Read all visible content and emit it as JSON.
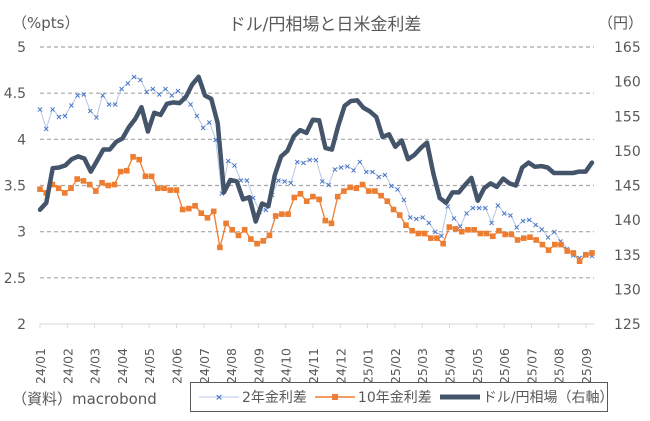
{
  "chart_data": {
    "type": "line",
    "title": "ドル/円相場と日米金利差",
    "ylabel_left": "（%pts）",
    "ylabel_right": "（円）",
    "source": "（資料）macrobond",
    "ylim_left": [
      2,
      5
    ],
    "ylim_right": [
      125,
      165
    ],
    "yticks_left": [
      "5",
      "4.5",
      "4",
      "3.5",
      "3",
      "2.5",
      "2"
    ],
    "yticks_right": [
      "165",
      "160",
      "155",
      "150",
      "145",
      "140",
      "135",
      "130",
      "125"
    ],
    "grid": true,
    "legend_position": "bottom",
    "x_tick_labels": [
      "24/01",
      "24/02",
      "24/03",
      "24/04",
      "24/05",
      "24/06",
      "24/07",
      "24/08",
      "24/09",
      "24/10",
      "24/11",
      "24/12",
      "25/01",
      "25/02",
      "25/03",
      "25/04",
      "25/05",
      "25/06",
      "25/07",
      "25/08",
      "25/09"
    ],
    "series": [
      {
        "name": "2年金利差",
        "axis": "left",
        "color": "#4472C4",
        "values": [
          4.33,
          4.12,
          4.33,
          4.25,
          4.26,
          4.37,
          4.48,
          4.49,
          4.31,
          4.24,
          4.48,
          4.38,
          4.38,
          4.55,
          4.61,
          4.68,
          4.65,
          4.52,
          4.55,
          4.49,
          4.55,
          4.48,
          4.53,
          4.45,
          4.38,
          4.26,
          4.13,
          4.19,
          4.0,
          3.42,
          3.77,
          3.72,
          3.56,
          3.56,
          3.37,
          3.22,
          3.24,
          3.4,
          3.56,
          3.55,
          3.53,
          3.76,
          3.75,
          3.78,
          3.78,
          3.55,
          3.51,
          3.68,
          3.7,
          3.71,
          3.67,
          3.76,
          3.65,
          3.65,
          3.6,
          3.62,
          3.5,
          3.46,
          3.35,
          3.16,
          3.14,
          3.16,
          3.1,
          3.0,
          2.96,
          3.28,
          3.15,
          3.06,
          3.2,
          3.26,
          3.26,
          3.26,
          3.1,
          3.29,
          3.2,
          3.18,
          3.05,
          3.12,
          3.13,
          3.08,
          3.03,
          2.94,
          3.0,
          2.9,
          2.82,
          2.75,
          2.72,
          2.75,
          2.74
        ]
      },
      {
        "name": "10年金利差",
        "axis": "left",
        "color": "#ED7D31",
        "values": [
          3.46,
          3.42,
          3.51,
          3.47,
          3.42,
          3.47,
          3.57,
          3.55,
          3.51,
          3.44,
          3.53,
          3.5,
          3.51,
          3.65,
          3.66,
          3.81,
          3.78,
          3.6,
          3.6,
          3.47,
          3.47,
          3.45,
          3.45,
          3.24,
          3.25,
          3.28,
          3.2,
          3.15,
          3.22,
          2.83,
          3.09,
          3.02,
          2.96,
          3.02,
          2.92,
          2.87,
          2.9,
          2.96,
          3.17,
          3.19,
          3.19,
          3.37,
          3.41,
          3.33,
          3.38,
          3.35,
          3.12,
          3.09,
          3.38,
          3.44,
          3.48,
          3.47,
          3.51,
          3.44,
          3.44,
          3.39,
          3.33,
          3.24,
          3.18,
          3.07,
          3.01,
          2.98,
          2.98,
          2.93,
          2.93,
          2.87,
          3.05,
          3.03,
          3.0,
          3.02,
          3.02,
          2.98,
          2.98,
          2.95,
          3.01,
          2.97,
          2.97,
          2.91,
          2.93,
          2.94,
          2.91,
          2.86,
          2.8,
          2.86,
          2.86,
          2.79,
          2.77,
          2.68,
          2.75,
          2.77
        ]
      },
      {
        "name": "ドル/円相場（右軸）",
        "axis": "right",
        "color": "#44546A",
        "values": [
          141.5,
          142.5,
          147.5,
          147.6,
          147.9,
          148.8,
          149.2,
          148.9,
          147.0,
          148.6,
          150.2,
          150.2,
          151.3,
          151.8,
          153.4,
          154.6,
          156.3,
          152.8,
          155.5,
          155.2,
          156.8,
          157.0,
          156.9,
          157.8,
          159.6,
          160.7,
          158.0,
          157.5,
          154.0,
          144.0,
          145.8,
          145.6,
          143.0,
          143.3,
          139.8,
          142.4,
          142.0,
          146.5,
          149.2,
          150.0,
          152.1,
          153.0,
          152.6,
          154.5,
          154.4,
          150.4,
          150.2,
          153.6,
          156.5,
          157.2,
          157.3,
          156.2,
          155.7,
          154.9,
          152.0,
          152.4,
          150.6,
          151.5,
          148.8,
          149.4,
          150.4,
          151.2,
          146.7,
          143.2,
          142.5,
          144.0,
          144.0,
          145.1,
          146.1,
          142.8,
          144.6,
          145.3,
          144.8,
          146.0,
          145.3,
          145.0,
          147.6,
          148.3,
          147.7,
          147.8,
          147.6,
          146.8,
          146.8,
          146.8,
          146.8,
          147.0,
          147.0,
          148.3
        ]
      }
    ]
  },
  "legend": {
    "items": [
      "2年金利差",
      "10年金利差",
      "ドル/円相場（右軸）"
    ]
  }
}
